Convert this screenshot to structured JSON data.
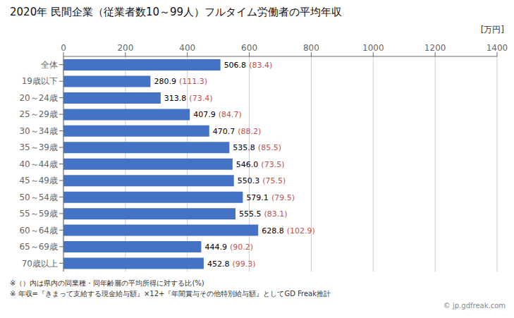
{
  "chart_data": {
    "type": "bar",
    "orientation": "horizontal",
    "title": "2020年 民間企業（従業者数10～99人）フルタイム労働者の平均年収",
    "xlabel": "[万円]",
    "categories": [
      "全体",
      "19歳以下",
      "20～24歳",
      "25～29歳",
      "30～34歳",
      "35～39歳",
      "40～44歳",
      "45～49歳",
      "50～54歳",
      "55～59歳",
      "60～64歳",
      "65～69歳",
      "70歳以上"
    ],
    "values": [
      506.8,
      280.9,
      313.8,
      407.9,
      470.7,
      535.8,
      546.0,
      550.3,
      579.1,
      555.5,
      628.8,
      444.9,
      452.8
    ],
    "value_labels": [
      "506.8",
      "280.9",
      "313.8",
      "407.9",
      "470.7",
      "535.8",
      "546.0",
      "550.3",
      "579.1",
      "555.5",
      "628.8",
      "444.9",
      "452.8"
    ],
    "ratio_labels": [
      "(83.4)",
      "(111.3)",
      "(73.4)",
      "(84.7)",
      "(88.2)",
      "(85.5)",
      "(73.5)",
      "(75.5)",
      "(79.5)",
      "(83.1)",
      "(102.9)",
      "(90.2)",
      "(99.3)"
    ],
    "ratio_color": "#c0504d",
    "color": "#4472c4",
    "xlim": [
      0,
      1400
    ],
    "xticks": [
      0,
      200,
      400,
      600,
      800,
      1000,
      1200,
      1400
    ],
    "grid": true,
    "data_labels": true,
    "annotations": [
      "※（）内は県内の同業種・同年齢層の平均所得に対する比(%)",
      "※ 年収=『きまって支給する現金給与額』×12+『年間賞与その他特別給与額』としてGD Freak推計",
      "© jp.gdfreak.com"
    ]
  }
}
